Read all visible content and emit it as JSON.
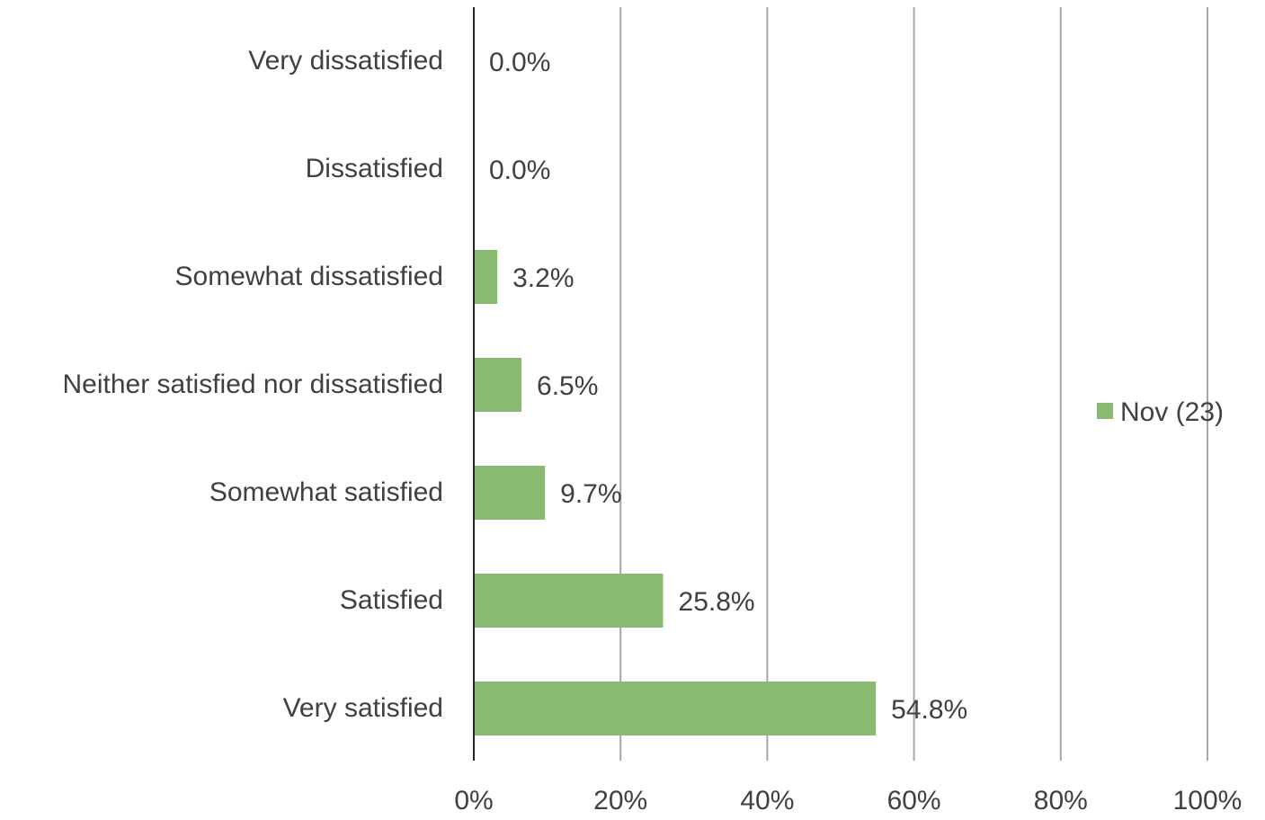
{
  "chart_data": {
    "type": "bar",
    "orientation": "horizontal",
    "title": "",
    "xlabel": "",
    "ylabel": "",
    "categories": [
      "Very dissatisfied",
      "Dissatisfied",
      "Somewhat dissatisfied",
      "Neither satisfied nor dissatisfied",
      "Somewhat satisfied",
      "Satisfied",
      "Very satisfied"
    ],
    "series": [
      {
        "name": "Nov (23)",
        "color": "#8aba72",
        "values": [
          0.0,
          0.0,
          3.2,
          6.5,
          9.7,
          25.8,
          54.8
        ],
        "labels": [
          "0.0%",
          "0.0%",
          "3.2%",
          "6.5%",
          "9.7%",
          "25.8%",
          "54.8%"
        ]
      }
    ],
    "xlim": [
      0,
      100
    ],
    "xticks": [
      0,
      20,
      40,
      60,
      80,
      100
    ],
    "xtick_labels": [
      "0%",
      "20%",
      "40%",
      "60%",
      "80%",
      "100%"
    ],
    "grid": true,
    "legend_position": "right"
  }
}
